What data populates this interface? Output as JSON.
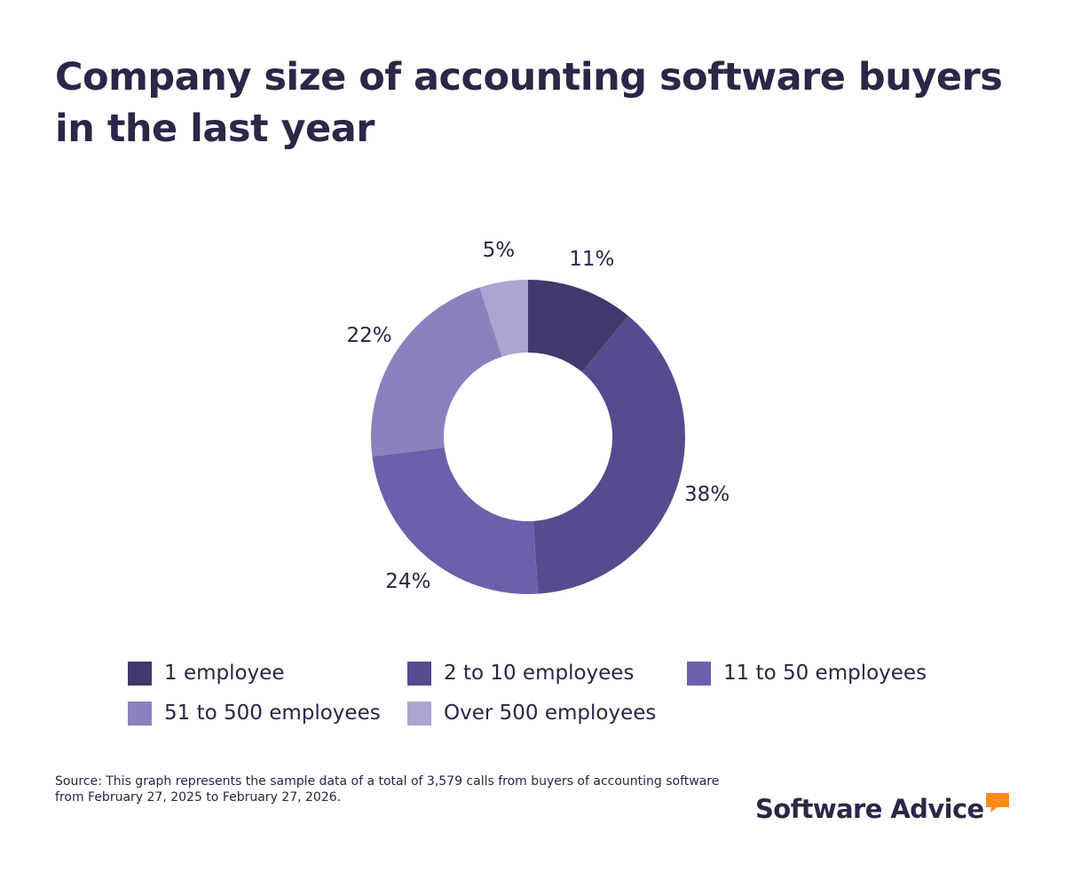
{
  "title": "Company size of accounting software buyers in the last year",
  "chart_data": {
    "type": "pie",
    "variant": "donut",
    "title": "Company size of accounting software buyers in the last year",
    "categories": [
      "1 employee",
      "2 to 10 employees",
      "11 to 50 employees",
      "51 to 500 employees",
      "Over 500 employees"
    ],
    "values": [
      11,
      38,
      24,
      22,
      5
    ],
    "labels": [
      "11%",
      "38%",
      "24%",
      "22%",
      "5%"
    ],
    "unit": "%",
    "colors": [
      "#41386d",
      "#554b8f",
      "#6c60ad",
      "#8a82be",
      "#aca4d2"
    ],
    "legend": "bottom"
  },
  "source": "Source: This graph represents the sample data of a total of 3,579 calls from buyers of accounting software from February 27, 2025 to February 27, 2026.",
  "brand": {
    "name": "Software Advice",
    "icon": "speech-bubble-icon",
    "icon_color": "#ff8c1a"
  }
}
